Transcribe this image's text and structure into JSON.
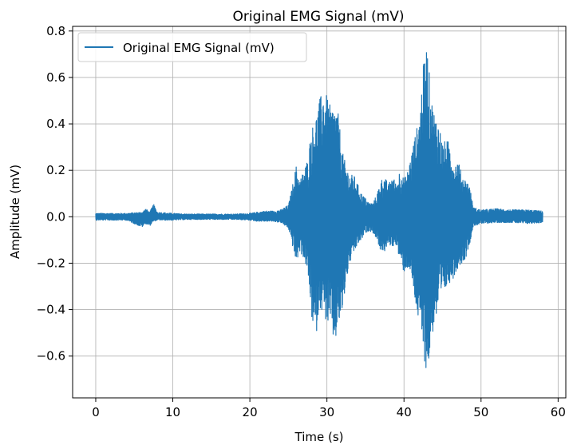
{
  "chart_data": {
    "type": "line",
    "title": "Original EMG Signal (mV)",
    "xlabel": "Time (s)",
    "ylabel": "Amplitude (mV)",
    "xlim": [
      -3,
      61
    ],
    "ylim": [
      -0.78,
      0.82
    ],
    "x_ticks": [
      0,
      10,
      20,
      30,
      40,
      50,
      60
    ],
    "x_tick_labels": [
      "0",
      "10",
      "20",
      "30",
      "40",
      "50",
      "60"
    ],
    "y_ticks": [
      -0.6,
      -0.4,
      -0.2,
      0.0,
      0.2,
      0.4,
      0.6,
      0.8
    ],
    "y_tick_labels": [
      "−0.6",
      "−0.4",
      "−0.2",
      "0.0",
      "0.2",
      "0.4",
      "0.6",
      "0.8"
    ],
    "grid": true,
    "legend_position": "top-left",
    "series": [
      {
        "name": "Original EMG Signal (mV)",
        "color": "#1f77b4",
        "envelope": {
          "t": [
            0,
            2,
            4,
            6,
            6.5,
            7,
            7.5,
            8,
            10,
            12,
            14,
            16,
            18,
            20,
            21,
            22,
            23,
            24,
            25,
            25.5,
            26,
            26.5,
            27,
            27.5,
            28,
            28.5,
            29,
            29.5,
            30,
            30.5,
            31,
            31.5,
            32,
            32.5,
            33,
            33.5,
            34,
            34.5,
            35,
            35.5,
            36,
            36.5,
            37,
            37.5,
            38,
            38.5,
            39,
            39.5,
            40,
            40.5,
            41,
            41.5,
            42,
            42.5,
            43,
            43.5,
            44,
            44.5,
            45,
            45.5,
            46,
            46.5,
            47,
            47.5,
            48,
            48.5,
            49,
            50,
            52,
            54,
            56,
            58
          ],
          "upper": [
            0.015,
            0.015,
            0.015,
            0.02,
            0.035,
            0.02,
            0.055,
            0.02,
            0.015,
            0.012,
            0.012,
            0.012,
            0.012,
            0.015,
            0.02,
            0.025,
            0.025,
            0.03,
            0.05,
            0.13,
            0.22,
            0.16,
            0.2,
            0.25,
            0.38,
            0.42,
            0.5,
            0.55,
            0.52,
            0.47,
            0.48,
            0.44,
            0.28,
            0.22,
            0.18,
            0.18,
            0.14,
            0.1,
            0.08,
            0.06,
            0.06,
            0.1,
            0.16,
            0.17,
            0.14,
            0.18,
            0.14,
            0.21,
            0.16,
            0.2,
            0.28,
            0.36,
            0.43,
            0.65,
            0.75,
            0.52,
            0.44,
            0.41,
            0.32,
            0.33,
            0.32,
            0.22,
            0.25,
            0.18,
            0.16,
            0.14,
            0.04,
            0.03,
            0.035,
            0.03,
            0.03,
            0.025
          ],
          "lower": [
            -0.015,
            -0.015,
            -0.015,
            -0.045,
            -0.03,
            -0.04,
            -0.02,
            -0.015,
            -0.015,
            -0.012,
            -0.012,
            -0.012,
            -0.012,
            -0.015,
            -0.02,
            -0.02,
            -0.02,
            -0.025,
            -0.05,
            -0.12,
            -0.2,
            -0.15,
            -0.18,
            -0.24,
            -0.43,
            -0.55,
            -0.38,
            -0.42,
            -0.46,
            -0.48,
            -0.56,
            -0.47,
            -0.42,
            -0.28,
            -0.2,
            -0.16,
            -0.12,
            -0.1,
            -0.07,
            -0.06,
            -0.07,
            -0.1,
            -0.15,
            -0.15,
            -0.12,
            -0.13,
            -0.12,
            -0.2,
            -0.24,
            -0.22,
            -0.27,
            -0.38,
            -0.48,
            -0.58,
            -0.7,
            -0.55,
            -0.45,
            -0.42,
            -0.34,
            -0.31,
            -0.28,
            -0.26,
            -0.22,
            -0.2,
            -0.18,
            -0.12,
            -0.04,
            -0.03,
            -0.025,
            -0.025,
            -0.03,
            -0.025
          ]
        }
      }
    ]
  }
}
